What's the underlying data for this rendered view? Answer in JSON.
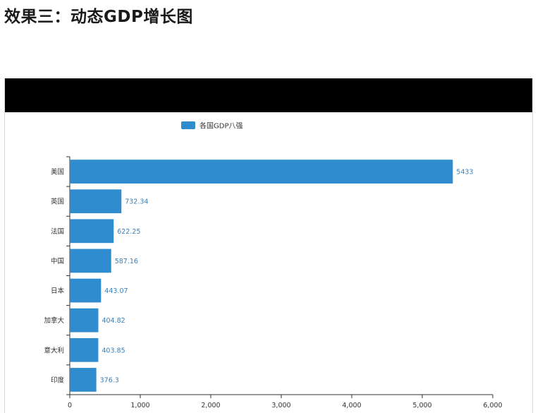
{
  "heading": "效果三：动态GDP增长图",
  "colors": {
    "bar": "#2e8ccf",
    "value_label": "#3a7fb8",
    "axis": "#333333",
    "text": "#333333",
    "top_bar": "#000000"
  },
  "chart_data": {
    "type": "bar",
    "orientation": "horizontal",
    "legend": "各国GDP八强",
    "legend_position": "top-center",
    "categories": [
      "美国",
      "英国",
      "法国",
      "中国",
      "日本",
      "加拿大",
      "意大利",
      "印度"
    ],
    "series": [
      {
        "name": "各国GDP八强",
        "values": [
          5433,
          732.34,
          622.25,
          587.16,
          443.07,
          404.82,
          403.85,
          376.3
        ],
        "labels": [
          "5433",
          "732.34",
          "622.25",
          "587.16",
          "443.07",
          "404.82",
          "403.85",
          "376.3"
        ]
      }
    ],
    "xlim": [
      0,
      6000
    ],
    "xticks": [
      "0",
      "1,000",
      "2,000",
      "3,000",
      "4,000",
      "5,000",
      "6,000"
    ],
    "xtick_values": [
      0,
      1000,
      2000,
      3000,
      4000,
      5000,
      6000
    ],
    "grid": false
  }
}
